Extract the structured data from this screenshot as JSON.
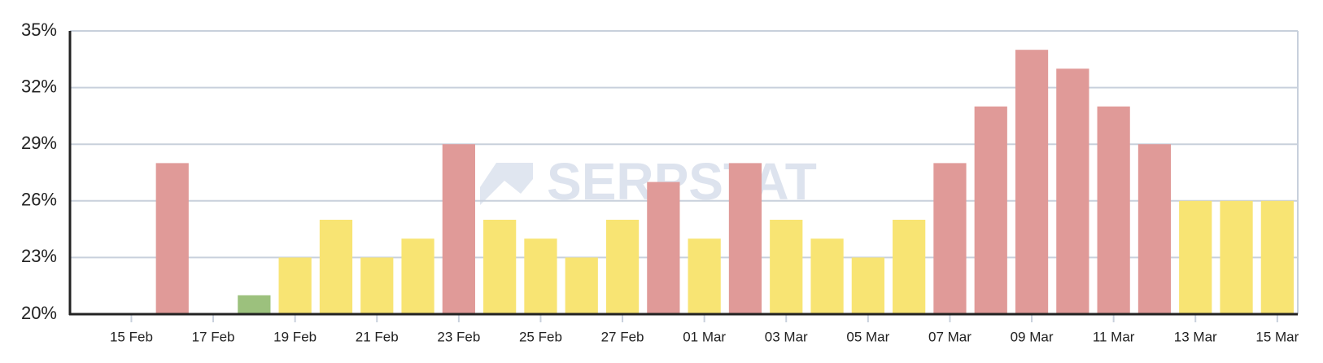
{
  "chart_data": {
    "type": "bar",
    "watermark": "SERPSTAT",
    "categories": [
      null,
      "15 Feb",
      null,
      "17 Feb",
      null,
      "19 Feb",
      null,
      "21 Feb",
      null,
      "23 Feb",
      null,
      "25 Feb",
      null,
      "27 Feb",
      null,
      "01 Mar",
      null,
      "03 Mar",
      null,
      "05 Mar",
      null,
      "07 Mar",
      null,
      "09 Mar",
      null,
      "11 Mar",
      null,
      "13 Mar",
      null,
      "15 Mar"
    ],
    "values": [
      null,
      null,
      28,
      null,
      21,
      23,
      25,
      23,
      24,
      29,
      25,
      24,
      23,
      25,
      27,
      24,
      28,
      25,
      24,
      23,
      25,
      28,
      31,
      34,
      33,
      31,
      29,
      26,
      26,
      26
    ],
    "colors": [
      null,
      null,
      "#e09a98",
      null,
      "#9cc17d",
      "#f8e473",
      "#f8e473",
      "#f8e473",
      "#f8e473",
      "#e09a98",
      "#f8e473",
      "#f8e473",
      "#f8e473",
      "#f8e473",
      "#e09a98",
      "#f8e473",
      "#e09a98",
      "#f8e473",
      "#f8e473",
      "#f8e473",
      "#f8e473",
      "#e09a98",
      "#e09a98",
      "#e09a98",
      "#e09a98",
      "#e09a98",
      "#e09a98",
      "#f8e473",
      "#f8e473",
      "#f8e473"
    ],
    "ylim": [
      20,
      35
    ],
    "yticks": [
      {
        "value": 20,
        "label": "20%"
      },
      {
        "value": 23,
        "label": "23%"
      },
      {
        "value": 26,
        "label": "26%"
      },
      {
        "value": 29,
        "label": "29%"
      },
      {
        "value": 32,
        "label": "32%"
      },
      {
        "value": 35,
        "label": "35%"
      }
    ],
    "grid": true
  }
}
